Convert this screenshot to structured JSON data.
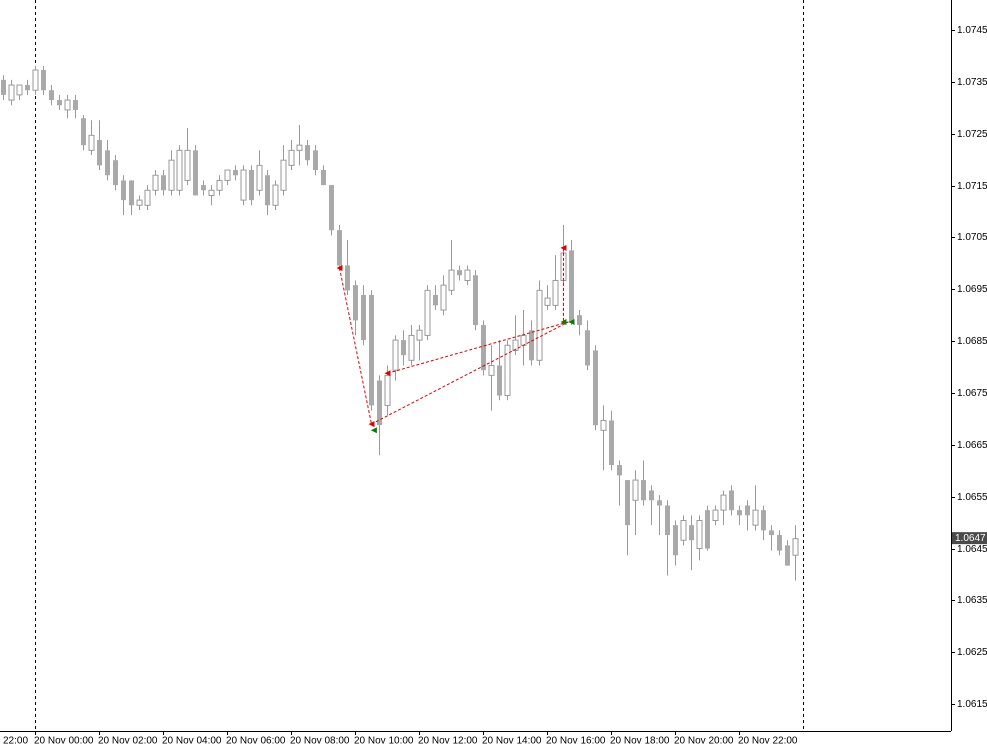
{
  "chart_data": {
    "type": "candlestick",
    "up_color": "#ffffff",
    "down_color": "#a9a9a9",
    "wick_color": "#9a9a9a",
    "ylim": [
      1.06098,
      1.07508
    ],
    "yticks": [
      1.0745,
      1.0735,
      1.0725,
      1.0715,
      1.0705,
      1.0695,
      1.0685,
      1.0675,
      1.0665,
      1.0655,
      1.0645,
      1.0635,
      1.0625,
      1.0615
    ],
    "x_edge_label": "22:00",
    "categories": [
      null,
      null,
      null,
      null,
      "20 Nov 00:00",
      null,
      null,
      null,
      null,
      null,
      null,
      null,
      "20 Nov 02:00",
      null,
      null,
      null,
      null,
      null,
      null,
      null,
      "20 Nov 04:00",
      null,
      null,
      null,
      null,
      null,
      null,
      null,
      "20 Nov 06:00",
      null,
      null,
      null,
      null,
      null,
      null,
      null,
      "20 Nov 08:00",
      null,
      null,
      null,
      null,
      null,
      null,
      null,
      "20 Nov 10:00",
      null,
      null,
      null,
      null,
      null,
      null,
      null,
      "20 Nov 12:00",
      null,
      null,
      null,
      null,
      null,
      null,
      null,
      "20 Nov 14:00",
      null,
      null,
      null,
      null,
      null,
      null,
      null,
      "20 Nov 16:00",
      null,
      null,
      null,
      null,
      null,
      null,
      null,
      "20 Nov 18:00",
      null,
      null,
      null,
      null,
      null,
      null,
      null,
      "20 Nov 20:00",
      null,
      null,
      null,
      null,
      null,
      null,
      null,
      "20 Nov 22:00",
      null,
      null,
      null,
      null,
      null,
      null,
      null
    ],
    "open": [
      1.07354,
      1.07315,
      1.07325,
      1.07344,
      1.07334,
      1.07373,
      1.07334,
      1.07315,
      1.07296,
      1.07315,
      1.0728,
      1.07218,
      1.07238,
      1.07218,
      1.07199,
      1.0716,
      1.0716,
      1.07112,
      1.07112,
      1.07141,
      1.0717,
      1.07141,
      1.07141,
      1.0716,
      1.07218,
      1.07151,
      1.07131,
      1.07141,
      1.0716,
      1.0718,
      1.07122,
      1.0718,
      1.07141,
      1.0717,
      1.07112,
      1.07141,
      1.07189,
      1.07218,
      1.07228,
      1.07218,
      1.0718,
      1.07151,
      1.07064,
      1.06996,
      1.06958,
      1.06939,
      1.06939,
      1.06774,
      1.06726,
      1.06794,
      1.06852,
      1.06813,
      1.06852,
      1.06861,
      1.06939,
      1.0691,
      1.06948,
      1.06987,
      1.06967,
      1.06977,
      1.06881,
      1.06784,
      1.06803,
      1.06745,
      1.06832,
      1.06842,
      1.06871,
      1.06813,
      1.06919,
      1.06919,
      1.06967,
      1.07025,
      1.069,
      1.06871,
      1.06832,
      1.06678,
      1.06697,
      1.06611,
      1.06582,
      1.06543,
      1.06582,
      1.06562,
      1.06543,
      1.06533,
      1.06495,
      1.06466,
      1.06495,
      1.0645,
      1.06524,
      1.06504,
      1.06524,
      1.06562,
      1.06524,
      1.06533,
      1.06495,
      1.06524,
      1.06485,
      1.06476,
      1.06456,
      1.06437
    ],
    "high": [
      1.07363,
      1.07354,
      1.07344,
      1.07354,
      1.07381,
      1.07381,
      1.07344,
      1.07325,
      1.07325,
      1.07325,
      1.07286,
      1.07276,
      1.07276,
      1.07238,
      1.07209,
      1.0717,
      1.0716,
      1.07131,
      1.07151,
      1.0718,
      1.0718,
      1.07218,
      1.07228,
      1.07261,
      1.07228,
      1.0716,
      1.07151,
      1.0717,
      1.0718,
      1.07189,
      1.07189,
      1.07189,
      1.07218,
      1.0718,
      1.0716,
      1.07228,
      1.07238,
      1.07267,
      1.07238,
      1.07228,
      1.07189,
      1.07151,
      1.07074,
      1.07045,
      1.06967,
      1.06958,
      1.06948,
      1.06784,
      1.06803,
      1.06861,
      1.06871,
      1.06881,
      1.06881,
      1.06958,
      1.06958,
      1.06977,
      1.07045,
      1.06996,
      1.06996,
      1.06987,
      1.0689,
      1.06842,
      1.06852,
      1.06852,
      1.069,
      1.0691,
      1.0689,
      1.06967,
      1.06958,
      1.07016,
      1.07074,
      1.07045,
      1.0691,
      1.0689,
      1.06842,
      1.06726,
      1.06716,
      1.0662,
      1.06582,
      1.06601,
      1.0662,
      1.06572,
      1.06553,
      1.06543,
      1.06504,
      1.06514,
      1.06514,
      1.06514,
      1.06533,
      1.06533,
      1.06562,
      1.06572,
      1.06533,
      1.06543,
      1.06572,
      1.06533,
      1.06495,
      1.06485,
      1.06466,
      1.06495
    ],
    "low": [
      1.07315,
      1.07305,
      1.07315,
      1.07325,
      1.07325,
      1.07325,
      1.07305,
      1.07296,
      1.0728,
      1.0728,
      1.07218,
      1.07209,
      1.0718,
      1.0716,
      1.07141,
      1.07093,
      1.07093,
      1.07103,
      1.07103,
      1.07131,
      1.07131,
      1.07131,
      1.07131,
      1.07151,
      1.07131,
      1.07131,
      1.07112,
      1.07131,
      1.07151,
      1.0716,
      1.07112,
      1.07112,
      1.07131,
      1.07093,
      1.07103,
      1.07131,
      1.0718,
      1.07189,
      1.07189,
      1.0717,
      1.07151,
      1.07054,
      1.06987,
      1.06939,
      1.06861,
      1.06842,
      1.06716,
      1.0663,
      1.06707,
      1.06774,
      1.06803,
      1.06803,
      1.06813,
      1.06852,
      1.0691,
      1.069,
      1.06939,
      1.06967,
      1.06958,
      1.06871,
      1.06784,
      1.06716,
      1.06736,
      1.06736,
      1.06823,
      1.06803,
      1.06803,
      1.06803,
      1.0691,
      1.0691,
      1.06958,
      1.06881,
      1.06861,
      1.06794,
      1.06678,
      1.06601,
      1.06601,
      1.06533,
      1.06437,
      1.06476,
      1.06533,
      1.06495,
      1.06476,
      1.06398,
      1.06417,
      1.06456,
      1.06408,
      1.06427,
      1.06446,
      1.06495,
      1.06495,
      1.06514,
      1.06495,
      1.06485,
      1.06485,
      1.06466,
      1.06446,
      1.06437,
      1.06417,
      1.06388
    ],
    "close": [
      1.07325,
      1.07344,
      1.07344,
      1.07334,
      1.07373,
      1.07334,
      1.07315,
      1.07305,
      1.07315,
      1.07296,
      1.07228,
      1.07247,
      1.07189,
      1.0717,
      1.07151,
      1.07122,
      1.07112,
      1.07122,
      1.07141,
      1.0717,
      1.07141,
      1.07199,
      1.07218,
      1.07218,
      1.07131,
      1.07141,
      1.07141,
      1.0716,
      1.0718,
      1.0717,
      1.0718,
      1.07122,
      1.07189,
      1.07112,
      1.07151,
      1.07199,
      1.07218,
      1.07228,
      1.07199,
      1.0718,
      1.07151,
      1.07064,
      1.06996,
      1.06948,
      1.0689,
      1.06852,
      1.06726,
      1.06688,
      1.06784,
      1.06852,
      1.06823,
      1.06861,
      1.06871,
      1.06948,
      1.06919,
      1.06958,
      1.06987,
      1.06977,
      1.06987,
      1.06881,
      1.06794,
      1.06803,
      1.06745,
      1.06842,
      1.06852,
      1.06861,
      1.06813,
      1.06948,
      1.06933,
      1.06967,
      1.0702,
      1.06886,
      1.06881,
      1.06803,
      1.06688,
      1.06697,
      1.06611,
      1.06591,
      1.06495,
      1.06582,
      1.06543,
      1.06543,
      1.06533,
      1.06476,
      1.06437,
      1.06504,
      1.06466,
      1.06504,
      1.0645,
      1.06524,
      1.06553,
      1.06524,
      1.06514,
      1.06514,
      1.06524,
      1.06485,
      1.06476,
      1.06446,
      1.06417,
      1.06469
    ],
    "last_price": 1.0647,
    "pattern": {
      "color": "#e00000",
      "lines": [
        [
          {
            "index": 42,
            "price": 1.06991
          },
          {
            "index": 46,
            "price": 1.0669
          }
        ],
        [
          {
            "index": 48,
            "price": 1.06788
          },
          {
            "index": 70.6,
            "price": 1.06887
          }
        ],
        [
          {
            "index": 46,
            "price": 1.0669
          },
          {
            "index": 70.6,
            "price": 1.06887
          }
        ],
        [
          {
            "index": 70,
            "price": 1.0703
          },
          {
            "index": 70,
            "price": 1.06887
          }
        ]
      ],
      "markers": [
        {
          "index": 42,
          "price": 1.06991,
          "color": "#e00000"
        },
        {
          "index": 46,
          "price": 1.0669,
          "color": "#e00000"
        },
        {
          "index": 48,
          "price": 1.06788,
          "color": "#e00000"
        },
        {
          "index": 70,
          "price": 1.0703,
          "color": "#e00000"
        },
        {
          "index": 46.3,
          "price": 1.06678,
          "color": "#008000"
        },
        {
          "index": 70,
          "price": 1.06887,
          "color": "#008000"
        },
        {
          "index": 71,
          "price": 1.06887,
          "color": "#008000"
        }
      ]
    }
  }
}
